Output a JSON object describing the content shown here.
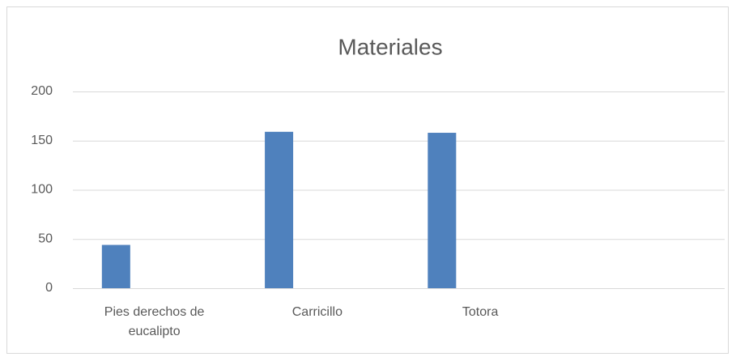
{
  "chart_data": {
    "type": "bar",
    "title": "Materiales",
    "categories": [
      "Pies derechos de eucalipto",
      "Carricillo",
      "Totora",
      null
    ],
    "values": [
      44,
      159,
      158,
      null
    ],
    "color": "#4f81bd",
    "ylim": [
      0,
      200
    ],
    "yticks": [
      0,
      50,
      100,
      150,
      200
    ],
    "grid": true
  }
}
